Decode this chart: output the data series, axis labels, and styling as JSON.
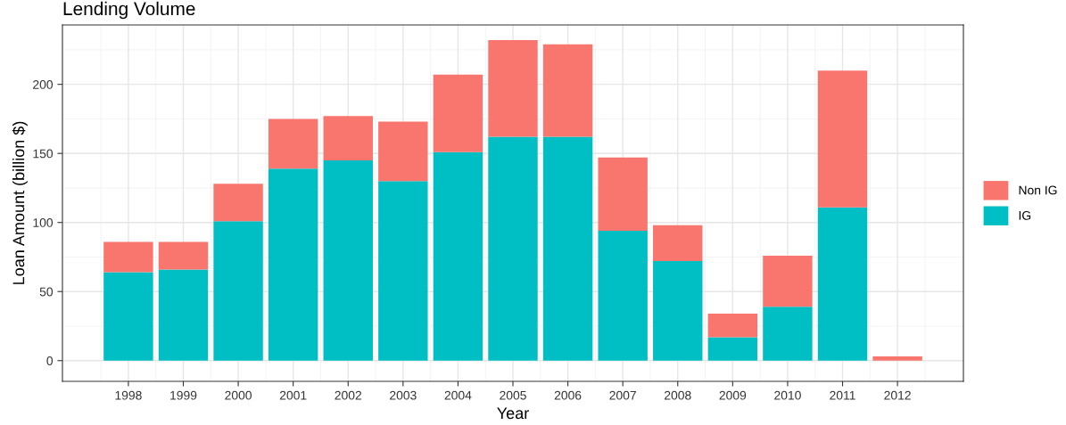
{
  "chart_data": {
    "type": "bar",
    "title": "Lending Volume",
    "xlabel": "Year",
    "ylabel": "Loan Amount (billion $)",
    "categories": [
      "1998",
      "1999",
      "2000",
      "2001",
      "2002",
      "2003",
      "2004",
      "2005",
      "2006",
      "2007",
      "2008",
      "2009",
      "2010",
      "2011",
      "2012"
    ],
    "series": [
      {
        "name": "IG",
        "color": "#00bfc4",
        "values": [
          64,
          66,
          101,
          139,
          145,
          130,
          151,
          162,
          162,
          94,
          72,
          17,
          39,
          111,
          0
        ]
      },
      {
        "name": "Non IG",
        "color": "#f8766d",
        "values": [
          22,
          20,
          27,
          36,
          32,
          43,
          56,
          70,
          67,
          53,
          26,
          17,
          37,
          99,
          3
        ]
      }
    ],
    "stacked": true,
    "ylim": [
      -15,
      243
    ],
    "yticks": [
      0,
      50,
      100,
      150,
      200
    ],
    "grid": true,
    "legend": "right"
  }
}
